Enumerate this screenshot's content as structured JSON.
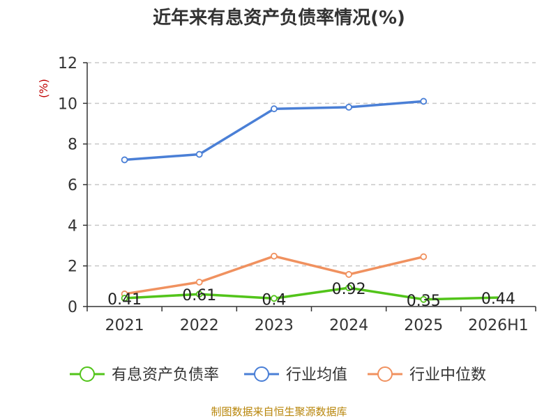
{
  "chart_data": {
    "type": "line",
    "title": "近年来有息资产负债率情况(%)",
    "ylabel": "(%)",
    "xlabel": "",
    "categories": [
      "2021",
      "2022",
      "2023",
      "2024",
      "2025",
      "2026H1"
    ],
    "ylim": [
      0,
      12
    ],
    "yticks": [
      0,
      2,
      4,
      6,
      8,
      10,
      12
    ],
    "grid": true,
    "legend_position": "bottom",
    "series": [
      {
        "name": "有息资产负债率",
        "color": "#52c41a",
        "values": [
          0.41,
          0.61,
          0.4,
          0.92,
          0.35,
          0.44
        ],
        "labels": [
          "0.41",
          "0.61",
          "0.4",
          "0.92",
          "0.35",
          "0.44"
        ]
      },
      {
        "name": "行业均值",
        "color": "#4a7fd6",
        "values": [
          7.22,
          7.49,
          9.73,
          9.81,
          10.1,
          null
        ]
      },
      {
        "name": "行业中位数",
        "color": "#f0915f",
        "values": [
          0.62,
          1.2,
          2.48,
          1.58,
          2.45,
          null
        ]
      }
    ]
  },
  "source_text": "制图数据来自恒生聚源数据库"
}
